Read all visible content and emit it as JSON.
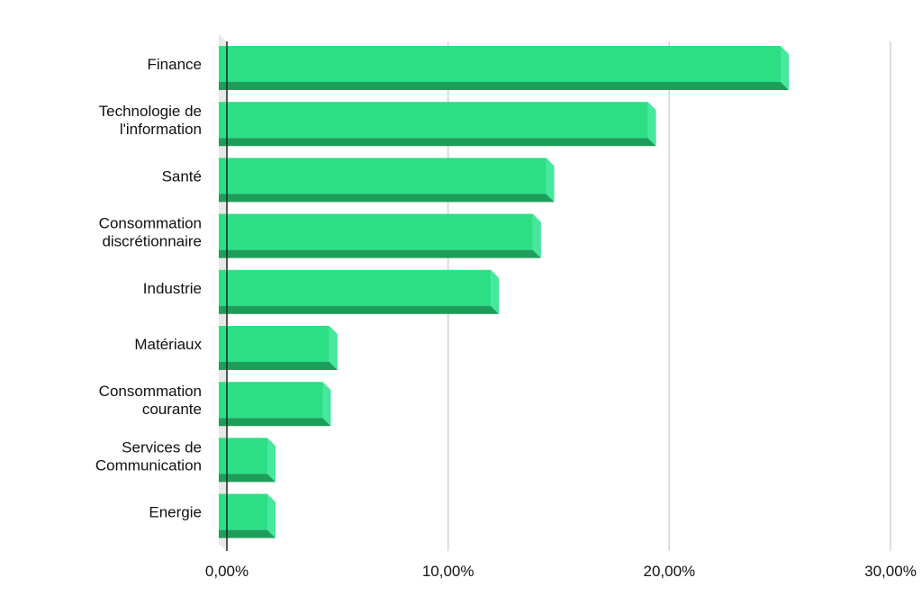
{
  "chart_data": {
    "type": "bar",
    "orientation": "horizontal",
    "title": "",
    "xlabel": "",
    "ylabel": "",
    "categories": [
      "Finance",
      "Technologie de l'information",
      "Santé",
      "Consommation discrétionnaire",
      "Industrie",
      "Matériaux",
      "Consommation courante",
      "Services de Communication",
      "Energie"
    ],
    "category_lines": [
      [
        "Finance"
      ],
      [
        "Technologie de",
        "l'information"
      ],
      [
        "Santé"
      ],
      [
        "Consommation",
        "discrétionnaire"
      ],
      [
        "Industrie"
      ],
      [
        "Matériaux"
      ],
      [
        "Consommation",
        "courante"
      ],
      [
        "Services de",
        "Communication"
      ],
      [
        "Energie"
      ]
    ],
    "values": [
      25.4,
      19.4,
      14.8,
      14.2,
      12.3,
      5.0,
      4.7,
      2.2,
      2.2
    ],
    "xlim": [
      0,
      30
    ],
    "x_ticks": [
      0,
      10,
      20,
      30
    ],
    "x_tick_labels": [
      "0,00%",
      "10,00%",
      "20,00%",
      "30,00%"
    ],
    "grid": true,
    "legend": "none",
    "colors": {
      "bar_face": "#2cdf85",
      "bar_side": "#45e89c",
      "bar_bottom": "#1c9e5a",
      "grid": "#d3d3d3",
      "axis": "#222222",
      "floor": "#e8e8e8"
    }
  }
}
